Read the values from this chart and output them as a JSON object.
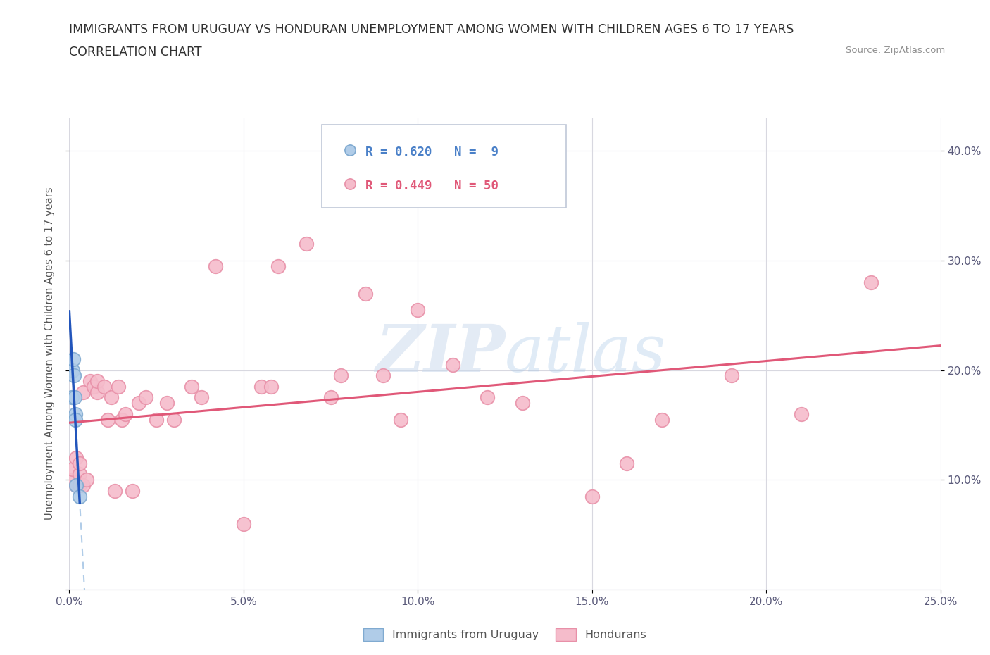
{
  "title": "IMMIGRANTS FROM URUGUAY VS HONDURAN UNEMPLOYMENT AMONG WOMEN WITH CHILDREN AGES 6 TO 17 YEARS",
  "subtitle": "CORRELATION CHART",
  "source": "Source: ZipAtlas.com",
  "ylabel": "Unemployment Among Women with Children Ages 6 to 17 years",
  "xlim": [
    0.0,
    0.25
  ],
  "ylim": [
    0.0,
    0.43
  ],
  "xticks": [
    0.0,
    0.05,
    0.1,
    0.15,
    0.2,
    0.25
  ],
  "yticks_right": [
    0.1,
    0.2,
    0.3,
    0.4
  ],
  "ytick_labels_right": [
    "10.0%",
    "20.0%",
    "30.0%",
    "40.0%"
  ],
  "xtick_labels": [
    "0.0%",
    "5.0%",
    "10.0%",
    "15.0%",
    "20.0%",
    "25.0%"
  ],
  "uruguay_color": "#b0cce8",
  "uruguay_edge": "#80aad0",
  "honduras_color": "#f5bccb",
  "honduras_edge": "#e890a8",
  "trendline_uruguay_color": "#2255bb",
  "trendline_honduras_color": "#e05878",
  "dashed_line_color": "#b0cce8",
  "legend_r_uruguay": "R = 0.620",
  "legend_n_uruguay": "N =  9",
  "legend_r_honduras": "R = 0.449",
  "legend_n_honduras": "N = 50",
  "uruguay_x": [
    0.0008,
    0.001,
    0.0012,
    0.0013,
    0.0015,
    0.0017,
    0.0018,
    0.002,
    0.003
  ],
  "uruguay_y": [
    0.175,
    0.2,
    0.21,
    0.195,
    0.175,
    0.16,
    0.155,
    0.095,
    0.085
  ],
  "honduras_x": [
    0.001,
    0.001,
    0.002,
    0.002,
    0.003,
    0.003,
    0.003,
    0.004,
    0.004,
    0.005,
    0.006,
    0.007,
    0.008,
    0.008,
    0.01,
    0.011,
    0.012,
    0.013,
    0.014,
    0.015,
    0.016,
    0.018,
    0.02,
    0.022,
    0.025,
    0.028,
    0.03,
    0.035,
    0.038,
    0.042,
    0.05,
    0.055,
    0.058,
    0.06,
    0.068,
    0.075,
    0.078,
    0.085,
    0.09,
    0.095,
    0.1,
    0.11,
    0.12,
    0.13,
    0.15,
    0.16,
    0.17,
    0.19,
    0.21,
    0.23
  ],
  "honduras_y": [
    0.1,
    0.11,
    0.095,
    0.12,
    0.095,
    0.105,
    0.115,
    0.095,
    0.18,
    0.1,
    0.19,
    0.185,
    0.18,
    0.19,
    0.185,
    0.155,
    0.175,
    0.09,
    0.185,
    0.155,
    0.16,
    0.09,
    0.17,
    0.175,
    0.155,
    0.17,
    0.155,
    0.185,
    0.175,
    0.295,
    0.06,
    0.185,
    0.185,
    0.295,
    0.315,
    0.175,
    0.195,
    0.27,
    0.195,
    0.155,
    0.255,
    0.205,
    0.175,
    0.17,
    0.085,
    0.115,
    0.155,
    0.195,
    0.16,
    0.28
  ],
  "background_color": "#ffffff",
  "grid_color": "#d8d8e0"
}
